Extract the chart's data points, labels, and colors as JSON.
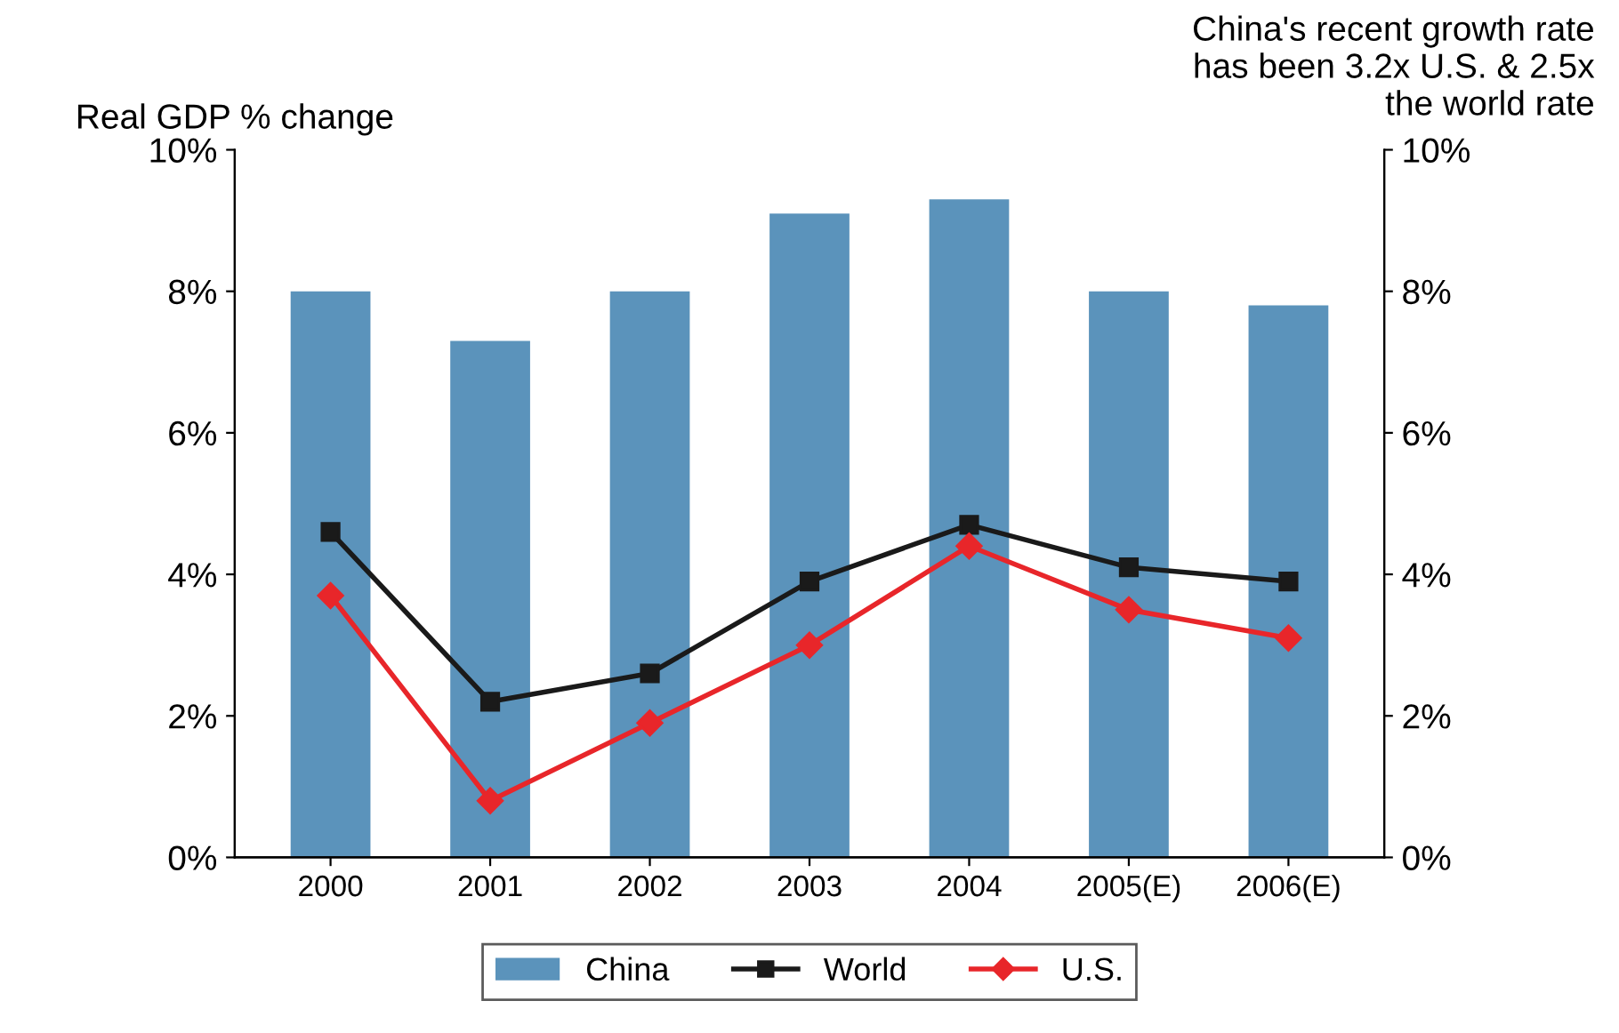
{
  "chart_data": {
    "type": "bar",
    "ylabel": "Real GDP % change",
    "annotations": [
      "China's recent growth rate\nhas been 3.2x U.S. & 2.5x\nthe world rate"
    ],
    "categories": [
      "2000",
      "2001",
      "2002",
      "2003",
      "2004",
      "2005(E)",
      "2006(E)"
    ],
    "series": [
      {
        "name": "China",
        "color": "#5b93bb",
        "values": [
          8.0,
          7.3,
          8.0,
          9.1,
          9.3,
          8.0,
          7.8
        ]
      },
      {
        "name": "World",
        "type": "line",
        "color": "#1a1a1a",
        "marker": "square",
        "values": [
          4.6,
          2.2,
          2.6,
          3.9,
          4.7,
          4.1,
          3.9
        ]
      },
      {
        "name": "U.S.",
        "type": "line",
        "color": "#e8262a",
        "marker": "diamond",
        "values": [
          3.7,
          0.8,
          1.9,
          3.0,
          4.4,
          3.5,
          3.1
        ]
      }
    ],
    "ylim": [
      0,
      10
    ],
    "yticks": [
      {
        "value": 0,
        "label": "0%"
      },
      {
        "value": 2,
        "label": "2%"
      },
      {
        "value": 4,
        "label": "4%"
      },
      {
        "value": 6,
        "label": "6%"
      },
      {
        "value": 8,
        "label": "8%"
      },
      {
        "value": 10,
        "label": "10%"
      }
    ],
    "y2lim": [
      0,
      10
    ],
    "y2ticks": [
      {
        "value": 0,
        "label": "0%"
      },
      {
        "value": 2,
        "label": "2%"
      },
      {
        "value": 4,
        "label": "4%"
      },
      {
        "value": 6,
        "label": "6%"
      },
      {
        "value": 8,
        "label": "8%"
      },
      {
        "value": 10,
        "label": "10%"
      }
    ],
    "grid": false,
    "legend": "bottom",
    "line_style": "solid"
  }
}
